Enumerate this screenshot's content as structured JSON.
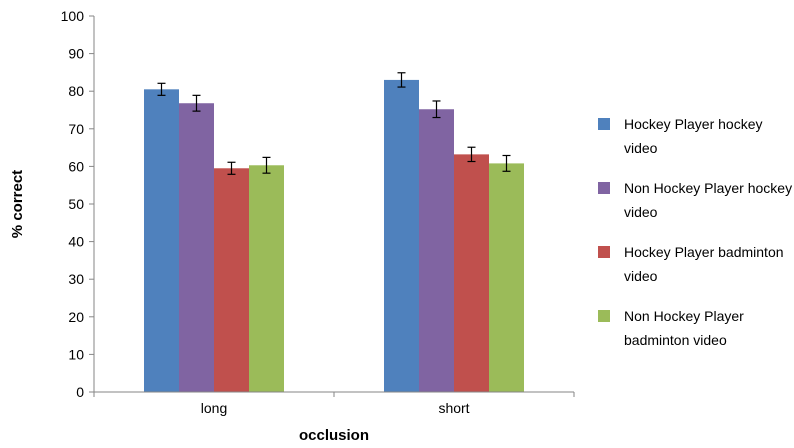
{
  "chart_data": {
    "type": "bar",
    "xlabel": "occlusion",
    "ylabel": "% correct",
    "ylim": [
      0,
      100
    ],
    "yticks": [
      0,
      10,
      20,
      30,
      40,
      50,
      60,
      70,
      80,
      90,
      100
    ],
    "categories": [
      "long",
      "short"
    ],
    "error_bars": true,
    "grid": false,
    "legend_position": "right",
    "series": [
      {
        "name": "Hockey Player hockey video",
        "color": "#4f81bd",
        "values": [
          80.5,
          83.0
        ],
        "errors": [
          1.6,
          1.9
        ]
      },
      {
        "name": "Non Hockey Player hockey video",
        "color": "#8064a2",
        "values": [
          76.8,
          75.2
        ],
        "errors": [
          2.1,
          2.2
        ]
      },
      {
        "name": "Hockey Player badminton video",
        "color": "#c0504d",
        "values": [
          59.5,
          63.2
        ],
        "errors": [
          1.6,
          1.9
        ]
      },
      {
        "name": "Non Hockey Player badminton video",
        "color": "#9bbb59",
        "values": [
          60.3,
          60.8
        ],
        "errors": [
          2.1,
          2.1
        ]
      }
    ]
  }
}
